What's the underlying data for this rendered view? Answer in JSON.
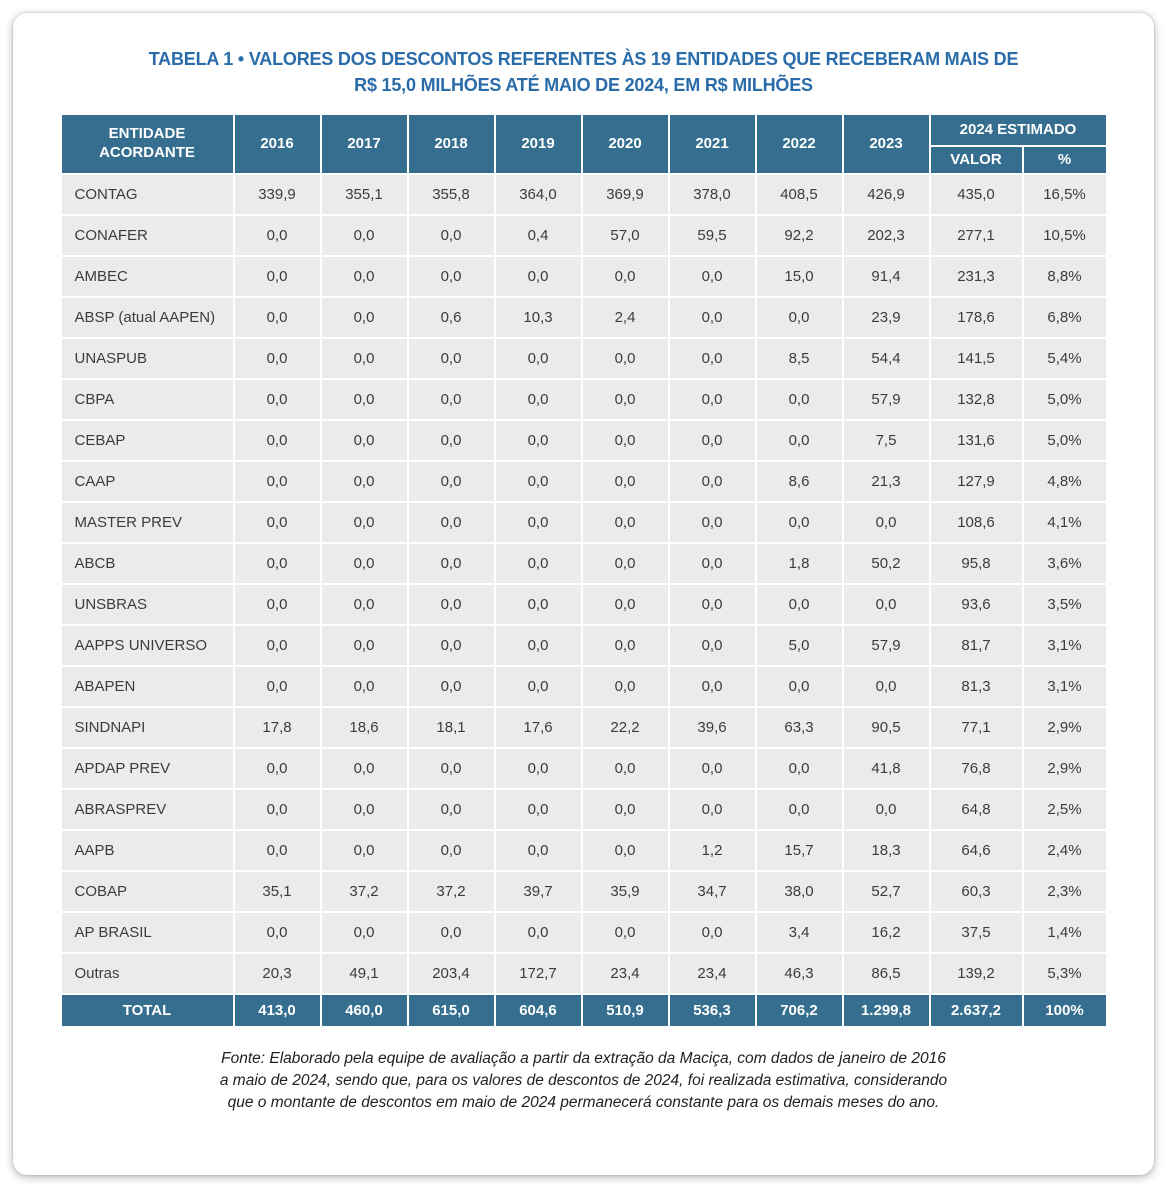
{
  "title": {
    "line1": "TABELA 1 • VALORES DOS DESCONTOS REFERENTES ÀS 19 ENTIDADES QUE RECEBERAM MAIS DE",
    "line2": "R$ 15,0 MILHÕES ATÉ MAIO DE 2024, EM R$ MILHÕES"
  },
  "table": {
    "header": {
      "entity_line1": "ENTIDADE",
      "entity_line2": "ACORDANTE",
      "years": [
        "2016",
        "2017",
        "2018",
        "2019",
        "2020",
        "2021",
        "2022",
        "2023"
      ],
      "estimated_group": "2024 ESTIMADO",
      "valor_label": "VALOR",
      "pct_label": "%"
    },
    "rows": [
      {
        "entity": "CONTAG",
        "cells": [
          "339,9",
          "355,1",
          "355,8",
          "364,0",
          "369,9",
          "378,0",
          "408,5",
          "426,9",
          "435,0",
          "16,5%"
        ]
      },
      {
        "entity": "CONAFER",
        "cells": [
          "0,0",
          "0,0",
          "0,0",
          "0,4",
          "57,0",
          "59,5",
          "92,2",
          "202,3",
          "277,1",
          "10,5%"
        ]
      },
      {
        "entity": "AMBEC",
        "cells": [
          "0,0",
          "0,0",
          "0,0",
          "0,0",
          "0,0",
          "0,0",
          "15,0",
          "91,4",
          "231,3",
          "8,8%"
        ]
      },
      {
        "entity": "ABSP (atual AAPEN)",
        "cells": [
          "0,0",
          "0,0",
          "0,6",
          "10,3",
          "2,4",
          "0,0",
          "0,0",
          "23,9",
          "178,6",
          "6,8%"
        ]
      },
      {
        "entity": "UNASPUB",
        "cells": [
          "0,0",
          "0,0",
          "0,0",
          "0,0",
          "0,0",
          "0,0",
          "8,5",
          "54,4",
          "141,5",
          "5,4%"
        ]
      },
      {
        "entity": "CBPA",
        "cells": [
          "0,0",
          "0,0",
          "0,0",
          "0,0",
          "0,0",
          "0,0",
          "0,0",
          "57,9",
          "132,8",
          "5,0%"
        ]
      },
      {
        "entity": "CEBAP",
        "cells": [
          "0,0",
          "0,0",
          "0,0",
          "0,0",
          "0,0",
          "0,0",
          "0,0",
          "7,5",
          "131,6",
          "5,0%"
        ]
      },
      {
        "entity": "CAAP",
        "cells": [
          "0,0",
          "0,0",
          "0,0",
          "0,0",
          "0,0",
          "0,0",
          "8,6",
          "21,3",
          "127,9",
          "4,8%"
        ]
      },
      {
        "entity": "MASTER PREV",
        "cells": [
          "0,0",
          "0,0",
          "0,0",
          "0,0",
          "0,0",
          "0,0",
          "0,0",
          "0,0",
          "108,6",
          "4,1%"
        ]
      },
      {
        "entity": "ABCB",
        "cells": [
          "0,0",
          "0,0",
          "0,0",
          "0,0",
          "0,0",
          "0,0",
          "1,8",
          "50,2",
          "95,8",
          "3,6%"
        ]
      },
      {
        "entity": "UNSBRAS",
        "cells": [
          "0,0",
          "0,0",
          "0,0",
          "0,0",
          "0,0",
          "0,0",
          "0,0",
          "0,0",
          "93,6",
          "3,5%"
        ]
      },
      {
        "entity": "AAPPS UNIVERSO",
        "cells": [
          "0,0",
          "0,0",
          "0,0",
          "0,0",
          "0,0",
          "0,0",
          "5,0",
          "57,9",
          "81,7",
          "3,1%"
        ]
      },
      {
        "entity": "ABAPEN",
        "cells": [
          "0,0",
          "0,0",
          "0,0",
          "0,0",
          "0,0",
          "0,0",
          "0,0",
          "0,0",
          "81,3",
          "3,1%"
        ]
      },
      {
        "entity": "SINDNAPI",
        "cells": [
          "17,8",
          "18,6",
          "18,1",
          "17,6",
          "22,2",
          "39,6",
          "63,3",
          "90,5",
          "77,1",
          "2,9%"
        ]
      },
      {
        "entity": "APDAP PREV",
        "cells": [
          "0,0",
          "0,0",
          "0,0",
          "0,0",
          "0,0",
          "0,0",
          "0,0",
          "41,8",
          "76,8",
          "2,9%"
        ]
      },
      {
        "entity": "ABRASPREV",
        "cells": [
          "0,0",
          "0,0",
          "0,0",
          "0,0",
          "0,0",
          "0,0",
          "0,0",
          "0,0",
          "64,8",
          "2,5%"
        ]
      },
      {
        "entity": "AAPB",
        "cells": [
          "0,0",
          "0,0",
          "0,0",
          "0,0",
          "0,0",
          "1,2",
          "15,7",
          "18,3",
          "64,6",
          "2,4%"
        ]
      },
      {
        "entity": "COBAP",
        "cells": [
          "35,1",
          "37,2",
          "37,2",
          "39,7",
          "35,9",
          "34,7",
          "38,0",
          "52,7",
          "60,3",
          "2,3%"
        ]
      },
      {
        "entity": "AP BRASIL",
        "cells": [
          "0,0",
          "0,0",
          "0,0",
          "0,0",
          "0,0",
          "0,0",
          "3,4",
          "16,2",
          "37,5",
          "1,4%"
        ]
      },
      {
        "entity": "Outras",
        "cells": [
          "20,3",
          "49,1",
          "203,4",
          "172,7",
          "23,4",
          "23,4",
          "46,3",
          "86,5",
          "139,2",
          "5,3%"
        ]
      }
    ],
    "total": {
      "label": "TOTAL",
      "cells": [
        "413,0",
        "460,0",
        "615,0",
        "604,6",
        "510,9",
        "536,3",
        "706,2",
        "1.299,8",
        "2.637,2",
        "100%"
      ]
    }
  },
  "footer": {
    "line1": "Fonte: Elaborado pela equipe de avaliação a partir da extração da Maciça, com dados de janeiro de 2016",
    "line2": "a maio de 2024, sendo que, para os valores de descontos de 2024, foi realizada estimativa, considerando",
    "line3": "que o montante de descontos em maio de 2024 permanecerá constante para os demais meses do ano."
  },
  "colors": {
    "header_bg": "#356e8f",
    "row_bg": "#e9ece8",
    "title_text": "#2a6ca9",
    "body_text": "#3c3c3c"
  }
}
